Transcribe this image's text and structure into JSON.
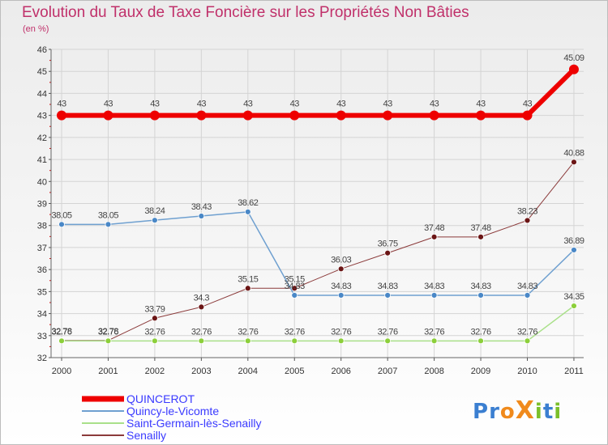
{
  "title": "Evolution du Taux de Taxe Foncière sur les Propriétés Non Bâties",
  "unit": "(en %)",
  "logo": {
    "text": "ProXiti",
    "letters": [
      "P",
      "r",
      "o",
      "X",
      "i",
      "t",
      "i"
    ]
  },
  "colors": {
    "title": "#c0306a",
    "legend_text": "#3a3aff",
    "grid": "#d4d4d4",
    "axis_tick": "#cc0000",
    "logo": [
      "#3b7fd1",
      "#3b7fd1",
      "#f08a1c",
      "#f08a1c",
      "#7bbf2a",
      "#3b7fd1",
      "#7bbf2a"
    ]
  },
  "chart_data": {
    "type": "line",
    "title": "Evolution du Taux de Taxe Foncière sur les Propriétés Non Bâties",
    "ylabel": "(en %)",
    "xlabel": "",
    "x": [
      "2000",
      "2001",
      "2002",
      "2003",
      "2004",
      "2005",
      "2006",
      "2007",
      "2008",
      "2009",
      "2010",
      "2011"
    ],
    "ylim": [
      32,
      46
    ],
    "yticks": [
      "32",
      "33",
      "34",
      "35",
      "36",
      "37",
      "38",
      "39",
      "40",
      "41",
      "42",
      "43",
      "44",
      "45",
      "46"
    ],
    "grid": true,
    "series": [
      {
        "name": "Senailly",
        "color": "#8b3a3a",
        "marker": "#6b1515",
        "width": 1,
        "values": [
          32.78,
          32.78,
          33.79,
          34.3,
          35.15,
          35.15,
          36.03,
          36.75,
          37.48,
          37.48,
          38.23,
          40.88
        ],
        "labels": [
          "32.78",
          "32.78",
          "33.79",
          "34.3",
          "35.15",
          "35.15",
          "36.03",
          "36.75",
          "37.48",
          "37.48",
          "38.23",
          "40.88"
        ]
      },
      {
        "name": "Saint-Germain-lès-Senailly",
        "color": "#a9e089",
        "marker": "#8ccf3a",
        "width": 1.5,
        "values": [
          32.76,
          32.76,
          32.76,
          32.76,
          32.76,
          32.76,
          32.76,
          32.76,
          32.76,
          32.76,
          32.76,
          34.35
        ],
        "labels": [
          "32.76",
          "32.76",
          "32.76",
          "32.76",
          "32.76",
          "32.76",
          "32.76",
          "32.76",
          "32.76",
          "32.76",
          "32.76",
          "34.35"
        ]
      },
      {
        "name": "Quincy-le-Vicomte",
        "color": "#6fa0d0",
        "marker": "#4a88c7",
        "width": 1.5,
        "values": [
          38.05,
          38.05,
          38.24,
          38.43,
          38.62,
          34.83,
          34.83,
          34.83,
          34.83,
          34.83,
          34.83,
          36.89
        ],
        "labels": [
          "38.05",
          "38.05",
          "38.24",
          "38.43",
          "38.62",
          "34.83",
          "34.83",
          "34.83",
          "34.83",
          "34.83",
          "34.83",
          "36.89"
        ]
      },
      {
        "name": "QUINCEROT",
        "color": "#ee0000",
        "marker": "#ee0000",
        "width": 6,
        "values": [
          43,
          43,
          43,
          43,
          43,
          43,
          43,
          43,
          43,
          43,
          43,
          45.09
        ],
        "labels": [
          "43",
          "43",
          "43",
          "43",
          "43",
          "43",
          "43",
          "43",
          "43",
          "43",
          "43",
          "45.09"
        ]
      }
    ],
    "legend": {
      "position": "bottom-left",
      "entries": [
        {
          "name": "QUINCEROT",
          "color": "#ee0000",
          "thick": true
        },
        {
          "name": "Quincy-le-Vicomte",
          "color": "#6fa0d0",
          "thick": false
        },
        {
          "name": "Saint-Germain-lès-Senailly",
          "color": "#a9e089",
          "thick": false
        },
        {
          "name": "Senailly",
          "color": "#8b3a3a",
          "thick": false
        }
      ]
    }
  }
}
